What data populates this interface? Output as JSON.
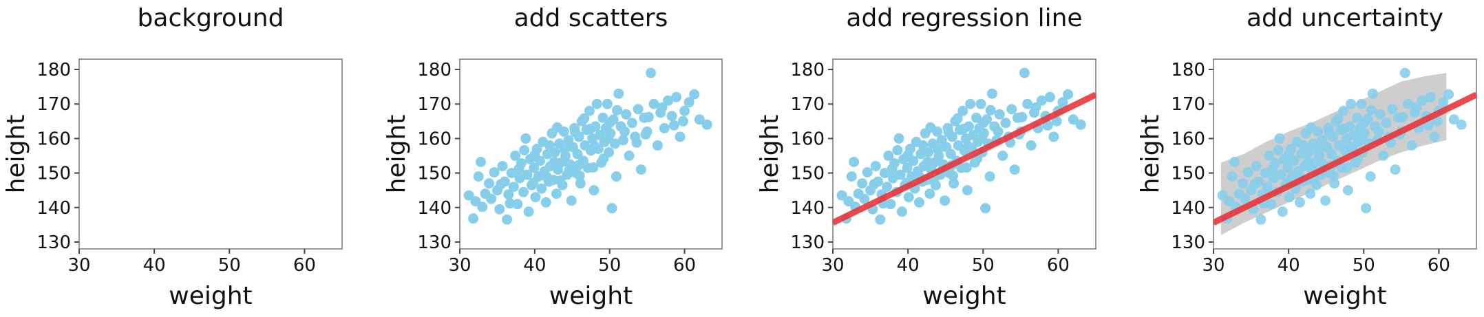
{
  "colors": {
    "points": "#87ceeb",
    "regression": "#e8363a",
    "band": "#bdbdbd",
    "frame": "#777777",
    "text": "#111111"
  },
  "chart_data": [
    {
      "type": "scatter",
      "title": "background",
      "xlabel": "weight",
      "ylabel": "height",
      "xlim": [
        30,
        65
      ],
      "ylim": [
        128,
        183
      ],
      "xticks": [
        30,
        40,
        50,
        60
      ],
      "yticks": [
        130,
        140,
        150,
        160,
        170,
        180
      ],
      "show_points": false,
      "show_line": false,
      "show_band": false,
      "grid": false
    },
    {
      "type": "scatter",
      "title": "add scatters",
      "xlabel": "weight",
      "ylabel": "height",
      "xlim": [
        30,
        65
      ],
      "ylim": [
        128,
        183
      ],
      "xticks": [
        30,
        40,
        50,
        60
      ],
      "yticks": [
        130,
        140,
        150,
        160,
        170,
        180
      ],
      "show_points": true,
      "show_line": false,
      "show_band": false,
      "grid": false
    },
    {
      "type": "scatter",
      "title": "add regression line",
      "xlabel": "weight",
      "ylabel": "height",
      "xlim": [
        30,
        65
      ],
      "ylim": [
        128,
        183
      ],
      "xticks": [
        30,
        40,
        50,
        60
      ],
      "yticks": [
        130,
        140,
        150,
        160,
        170,
        180
      ],
      "show_points": true,
      "show_line": true,
      "show_band": false,
      "grid": false
    },
    {
      "type": "scatter",
      "title": "add uncertainty",
      "xlabel": "weight",
      "ylabel": "height",
      "xlim": [
        30,
        65
      ],
      "ylim": [
        128,
        183
      ],
      "xticks": [
        30,
        40,
        50,
        60
      ],
      "yticks": [
        130,
        140,
        150,
        160,
        170,
        180
      ],
      "show_points": true,
      "show_line": true,
      "show_band": true,
      "grid": false
    }
  ],
  "points": [
    [
      31.2,
      143.5
    ],
    [
      31.8,
      136.8
    ],
    [
      32.1,
      141.8
    ],
    [
      32.5,
      149.0
    ],
    [
      32.8,
      153.2
    ],
    [
      33.4,
      144.0
    ],
    [
      33.9,
      147.0
    ],
    [
      34.2,
      142.5
    ],
    [
      34.6,
      150.2
    ],
    [
      35.0,
      145.0
    ],
    [
      35.3,
      139.5
    ],
    [
      35.7,
      152.0
    ],
    [
      36.0,
      147.5
    ],
    [
      36.3,
      136.5
    ],
    [
      36.5,
      143.8
    ],
    [
      36.9,
      150.0
    ],
    [
      37.2,
      146.0
    ],
    [
      37.4,
      155.0
    ],
    [
      37.7,
      141.0
    ],
    [
      38.0,
      148.5
    ],
    [
      38.2,
      152.8
    ],
    [
      38.5,
      144.5
    ],
    [
      38.8,
      160.0
    ],
    [
      39.0,
      149.5
    ],
    [
      39.2,
      138.8
    ],
    [
      39.4,
      154.0
    ],
    [
      39.6,
      146.5
    ],
    [
      39.9,
      151.5
    ],
    [
      40.1,
      143.0
    ],
    [
      40.3,
      157.0
    ],
    [
      40.5,
      149.0
    ],
    [
      40.7,
      153.5
    ],
    [
      40.9,
      145.5
    ],
    [
      41.1,
      159.0
    ],
    [
      41.3,
      150.5
    ],
    [
      41.5,
      141.5
    ],
    [
      41.7,
      155.5
    ],
    [
      41.9,
      147.5
    ],
    [
      42.1,
      152.0
    ],
    [
      42.3,
      161.5
    ],
    [
      42.5,
      148.0
    ],
    [
      42.7,
      156.0
    ],
    [
      42.9,
      144.0
    ],
    [
      43.1,
      151.0
    ],
    [
      43.3,
      158.5
    ],
    [
      43.5,
      153.0
    ],
    [
      43.7,
      146.5
    ],
    [
      43.9,
      162.0
    ],
    [
      44.1,
      155.0
    ],
    [
      44.3,
      149.5
    ],
    [
      44.5,
      159.5
    ],
    [
      44.7,
      152.5
    ],
    [
      44.9,
      142.0
    ],
    [
      45.1,
      157.5
    ],
    [
      45.3,
      163.0
    ],
    [
      45.5,
      150.0
    ],
    [
      45.7,
      155.5
    ],
    [
      45.9,
      160.5
    ],
    [
      46.1,
      147.0
    ],
    [
      46.3,
      165.0
    ],
    [
      46.5,
      153.5
    ],
    [
      46.7,
      158.0
    ],
    [
      46.9,
      162.5
    ],
    [
      47.1,
      151.5
    ],
    [
      47.3,
      168.0
    ],
    [
      47.5,
      156.5
    ],
    [
      47.7,
      160.0
    ],
    [
      47.9,
      145.0
    ],
    [
      48.1,
      163.5
    ],
    [
      48.3,
      170.0
    ],
    [
      48.5,
      157.0
    ],
    [
      48.7,
      161.0
    ],
    [
      48.9,
      153.0
    ],
    [
      49.1,
      166.0
    ],
    [
      49.3,
      159.0
    ],
    [
      49.5,
      163.0
    ],
    [
      49.7,
      170.0
    ],
    [
      49.9,
      156.0
    ],
    [
      50.1,
      161.5
    ],
    [
      50.3,
      139.8
    ],
    [
      50.5,
      165.5
    ],
    [
      50.7,
      158.5
    ],
    [
      50.9,
      149.0
    ],
    [
      51.2,
      173.0
    ],
    [
      51.5,
      163.5
    ],
    [
      51.8,
      159.5
    ],
    [
      52.2,
      167.0
    ],
    [
      52.6,
      155.0
    ],
    [
      53.0,
      164.5
    ],
    [
      53.4,
      160.5
    ],
    [
      53.8,
      168.5
    ],
    [
      54.2,
      151.0
    ],
    [
      54.6,
      166.0
    ],
    [
      55.0,
      162.0
    ],
    [
      55.5,
      179.0
    ],
    [
      55.9,
      170.0
    ],
    [
      56.4,
      158.0
    ],
    [
      56.8,
      167.5
    ],
    [
      57.3,
      163.0
    ],
    [
      57.8,
      171.0
    ],
    [
      58.3,
      166.5
    ],
    [
      58.9,
      172.0
    ],
    [
      59.4,
      160.5
    ],
    [
      60.0,
      168.0
    ],
    [
      60.6,
      170.5
    ],
    [
      61.3,
      172.8
    ],
    [
      62.0,
      165.5
    ],
    [
      63.0,
      164.0
    ],
    [
      44.0,
      156.8
    ],
    [
      45.8,
      152.2
    ],
    [
      47.4,
      162.8
    ],
    [
      43.4,
      147.8
    ],
    [
      39.8,
      147.2
    ],
    [
      42.0,
      158.0
    ],
    [
      46.0,
      149.2
    ],
    [
      48.0,
      157.8
    ],
    [
      50.0,
      164.5
    ],
    [
      37.9,
      151.2
    ],
    [
      35.5,
      146.8
    ],
    [
      41.6,
      148.8
    ],
    [
      44.6,
      150.8
    ],
    [
      46.6,
      165.8
    ],
    [
      49.2,
      154.2
    ],
    [
      52.0,
      162.0
    ],
    [
      53.6,
      158.8
    ],
    [
      55.2,
      166.2
    ],
    [
      57.0,
      169.0
    ],
    [
      58.6,
      163.8
    ],
    [
      40.0,
      155.2
    ],
    [
      42.6,
      153.2
    ],
    [
      45.4,
      161.8
    ],
    [
      47.8,
      151.6
    ],
    [
      51.0,
      168.2
    ],
    [
      33.0,
      140.2
    ],
    [
      36.7,
      141.2
    ],
    [
      38.6,
      156.6
    ],
    [
      43.0,
      163.2
    ],
    [
      49.8,
      160.0
    ],
    [
      54.8,
      161.2
    ],
    [
      59.8,
      165.0
    ]
  ],
  "regression": {
    "intercept": 103.8,
    "slope": 1.06
  },
  "band": {
    "x": [
      31,
      34,
      37,
      40,
      43,
      46,
      49,
      52,
      55,
      58,
      61
    ],
    "upper": [
      153,
      155.5,
      159,
      162,
      164.5,
      167.5,
      170.5,
      173.5,
      176.5,
      178,
      179
    ],
    "lower": [
      132,
      135.5,
      138.5,
      141.5,
      144.5,
      147.5,
      150.5,
      153.5,
      156,
      158,
      159.5
    ]
  }
}
